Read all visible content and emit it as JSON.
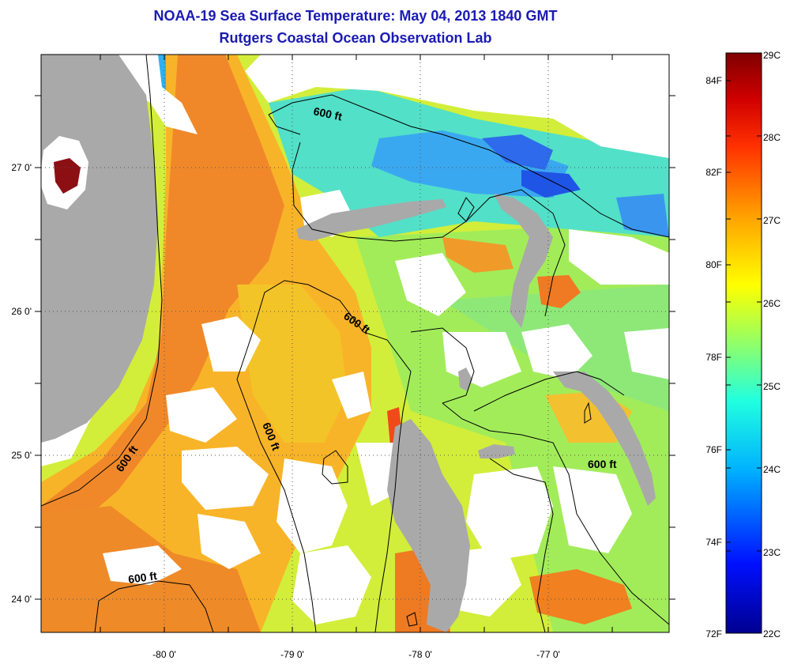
{
  "title": {
    "line1": "NOAA-19 Sea Surface Temperature:  May 04, 2013 1840 GMT",
    "line2": "Rutgers Coastal Ocean Observation Lab"
  },
  "map": {
    "x_ticks": [
      "-80 0'",
      "-79 0'",
      "-78 0'",
      "-77 0'"
    ],
    "y_ticks": [
      "27 0'",
      "26 0'",
      "25 0'",
      "24 0'"
    ],
    "contour_labels": [
      "600 ft",
      "600 ft",
      "600 ft",
      "600 ft",
      "600 ft",
      "600 ft"
    ],
    "colors": {
      "land": "#a9a9a9",
      "cloud": "#ffffff",
      "grid": "#555555"
    }
  },
  "colorbar": {
    "celsius": [
      "29C",
      "28C",
      "27C",
      "26C",
      "25C",
      "24C",
      "23C",
      "22C"
    ],
    "fahrenheit": [
      "84F",
      "82F",
      "80F",
      "78F",
      "76F",
      "74F",
      "72F"
    ],
    "range_c": [
      22,
      29
    ]
  }
}
